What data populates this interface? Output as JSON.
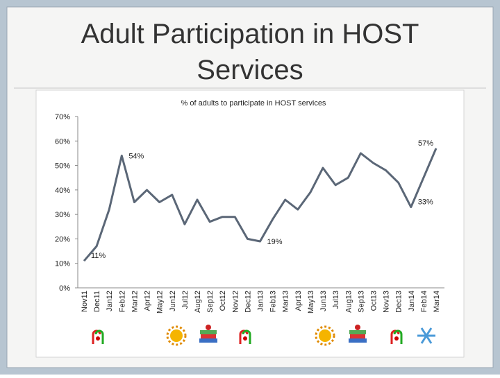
{
  "chart_data": {
    "type": "line",
    "title": "Adult Participation in HOST Services",
    "subtitle": "% of adults to participate in HOST services",
    "categories": [
      "Nov11",
      "Dec11",
      "Jan12",
      "Feb12",
      "Mar12",
      "Apr12",
      "May12",
      "Jun12",
      "Jul12",
      "Aug12",
      "Sep12",
      "Oct12",
      "Nov12",
      "Dec12",
      "Jan13",
      "Feb13",
      "Mar13",
      "Apr13",
      "May13",
      "Jun13",
      "Jul13",
      "Aug13",
      "Sep13",
      "Oct13",
      "Nov13",
      "Dec13",
      "Jan14",
      "Feb14",
      "Mar14"
    ],
    "values": [
      11,
      17,
      32,
      54,
      35,
      40,
      35,
      38,
      26,
      36,
      27,
      29,
      29,
      20,
      19,
      28,
      36,
      32,
      39,
      49,
      42,
      45,
      55,
      51,
      48,
      43,
      33,
      45,
      57
    ],
    "value_labels": [
      "11%",
      null,
      null,
      "54%",
      null,
      null,
      null,
      null,
      null,
      null,
      null,
      null,
      null,
      null,
      "19%",
      null,
      null,
      null,
      null,
      null,
      null,
      null,
      null,
      null,
      null,
      null,
      "33%",
      null,
      "57%"
    ],
    "color": "#5b6777",
    "ylim": [
      0,
      70
    ],
    "yticks": [
      {
        "value": 0,
        "label": "0%"
      },
      {
        "value": 10,
        "label": "10%"
      },
      {
        "value": 20,
        "label": "20%"
      },
      {
        "value": 30,
        "label": "30%"
      },
      {
        "value": 40,
        "label": "40%"
      },
      {
        "value": 50,
        "label": "50%"
      },
      {
        "value": 60,
        "label": "60%"
      },
      {
        "value": 70,
        "label": "70%"
      }
    ],
    "grid": false
  }
}
